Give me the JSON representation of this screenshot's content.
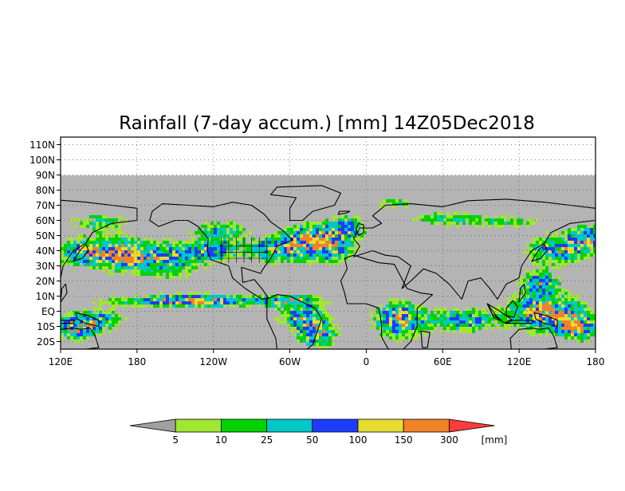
{
  "title": "Rainfall (7-day accum.) [mm] 14Z05Dec2018",
  "lat_labels": [
    "110N",
    "100N",
    "90N",
    "80N",
    "70N",
    "60N",
    "50N",
    "40N",
    "30N",
    "20N",
    "10N",
    "EQ",
    "10S",
    "20S"
  ],
  "lat_values": [
    110,
    100,
    90,
    80,
    70,
    60,
    50,
    40,
    30,
    20,
    10,
    0,
    -10,
    -20
  ],
  "lon_labels": [
    "120E",
    "180",
    "120W",
    "60W",
    "0",
    "60E",
    "120E",
    "180"
  ],
  "lon_values": [
    120,
    180,
    240,
    300,
    360,
    420,
    480,
    540
  ],
  "map_extent": {
    "lon_min": 120,
    "lon_max": 540,
    "lat_min": -25,
    "lat_max": 115
  },
  "data_lat_max": 90,
  "no_data_color": "#b4b4b4",
  "colorbar": {
    "ticks": [
      "5",
      "10",
      "25",
      "50",
      "100",
      "150",
      "300"
    ],
    "unit": "[mm]",
    "colors": [
      "#a0a0a0",
      "#a0e632",
      "#00d200",
      "#00c8c8",
      "#1e3cff",
      "#e6dc32",
      "#f08228",
      "#fa3c3c"
    ]
  }
}
